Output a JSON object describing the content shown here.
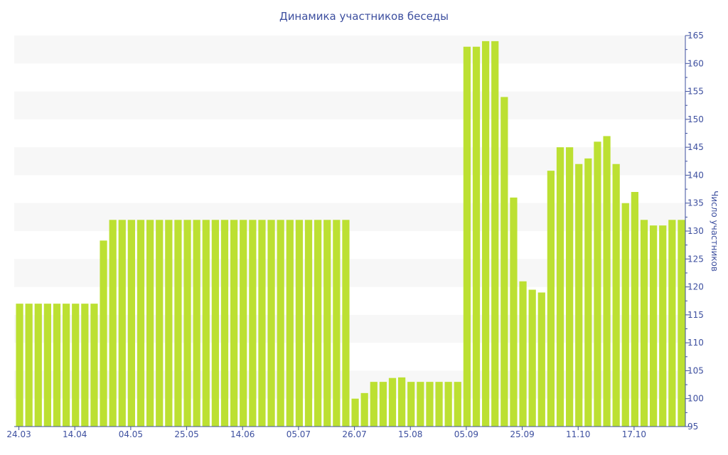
{
  "chart_data": {
    "type": "bar",
    "title": "Динамика участников беседы",
    "xlabel": "",
    "ylabel": "Число участников",
    "ylim": [
      95,
      165
    ],
    "y_ticks": [
      95,
      100,
      105,
      110,
      115,
      120,
      125,
      130,
      135,
      140,
      145,
      150,
      155,
      160,
      165
    ],
    "x_tick_labels": [
      "24.03",
      "14.04",
      "04.05",
      "25.05",
      "14.06",
      "05.07",
      "26.07",
      "15.08",
      "05.09",
      "25.09",
      "11.10",
      "17.10"
    ],
    "x_tick_every_n_bars": 6,
    "values": [
      117,
      117,
      117,
      117,
      117,
      117,
      117,
      117,
      117,
      128.3,
      132,
      132,
      132,
      132,
      132,
      132,
      132,
      132,
      132,
      132,
      132,
      132,
      132,
      132,
      132,
      132,
      132,
      132,
      132,
      132,
      132,
      132,
      132,
      132,
      132,
      132,
      100,
      101,
      103,
      103,
      103.7,
      103.8,
      103,
      103,
      103,
      103,
      103,
      103,
      163,
      163,
      164,
      164,
      154,
      136,
      121,
      119.5,
      119,
      140.8,
      145,
      145,
      142,
      143,
      146,
      147,
      142,
      135,
      137,
      132,
      131,
      131,
      132,
      132
    ],
    "grid": "alternating horizontal bands",
    "legend": "none",
    "colors": {
      "bar": "#bce032",
      "axis": "#3d4f9f",
      "band": "#f7f7f7"
    }
  }
}
